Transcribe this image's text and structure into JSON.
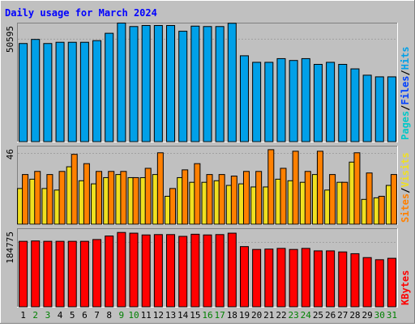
{
  "chart_data": {
    "type": "bar",
    "title": "Daily usage for March 2024",
    "x": {
      "labels": [
        "1",
        "2",
        "3",
        "4",
        "5",
        "6",
        "7",
        "8",
        "9",
        "10",
        "11",
        "12",
        "13",
        "14",
        "15",
        "16",
        "17",
        "18",
        "19",
        "20",
        "21",
        "22",
        "23",
        "24",
        "25",
        "26",
        "27",
        "28",
        "29",
        "30",
        "31"
      ],
      "weekend_days": [
        "2",
        "3",
        "9",
        "10",
        "16",
        "17",
        "23",
        "24",
        "30",
        "31"
      ]
    },
    "panels": [
      {
        "name": "hits-files-pages",
        "scale_label": "50595",
        "ymax": 57000,
        "legend": [
          "Pages",
          "/",
          "Files",
          "/",
          "Hits"
        ],
        "series": [
          {
            "name": "Hits",
            "color": "#00a0e8",
            "values": [
              48000,
              50000,
              48000,
              48600,
              48600,
              48600,
              49400,
              53000,
              58000,
              56300,
              56800,
              56800,
              56800,
              54000,
              56500,
              56300,
              56300,
              57900,
              42000,
              38800,
              38800,
              40600,
              39700,
              40600,
              37800,
              38800,
              37800,
              35600,
              32500,
              31700,
              31700
            ]
          }
        ]
      },
      {
        "name": "visits-sites",
        "scale_label": "46",
        "ymax": 49,
        "legend": [
          "Sites",
          "/",
          "Visits"
        ],
        "series": [
          {
            "name": "Visits",
            "color": "#f0e020",
            "values": [
              23,
              29,
              23,
              22,
              37,
              28,
              26,
              30,
              32,
              30,
              30,
              32,
              18,
              30,
              27,
              27,
              28,
              25,
              26,
              24,
              24,
              29,
              28,
              27,
              32,
              22,
              27,
              40,
              16,
              17,
              25
            ]
          },
          {
            "name": "Sites",
            "color": "#ff8000",
            "values": [
              32,
              34,
              32,
              34,
              45,
              39,
              34,
              34,
              34,
              30,
              36,
              46,
              23,
              35,
              39,
              32,
              32,
              31,
              34,
              34,
              48,
              36,
              47,
              34,
              47,
              32,
              27,
              46,
              33,
              18,
              32
            ]
          }
        ]
      },
      {
        "name": "kbytes",
        "scale_label": "184775",
        "ymax": 215000,
        "legend": [
          "KBytes"
        ],
        "series": [
          {
            "name": "KBytes",
            "color": "#ff0000",
            "values": [
              185000,
              186000,
              185000,
              185000,
              185000,
              185000,
              190000,
              200000,
              210000,
              208000,
              203000,
              204000,
              204000,
              199000,
              205000,
              203000,
              204000,
              208000,
              170000,
              162000,
              163000,
              165000,
              162000,
              165000,
              158000,
              158000,
              155000,
              150000,
              139000,
              133000,
              137000
            ]
          }
        ]
      }
    ],
    "colors": {
      "background": "#c0c0c0",
      "plot_background": "#c0c0c0",
      "border_dark": "#808080",
      "border_light": "#ffffff",
      "title": "#0000ff",
      "day_label": "#000000",
      "weekend_label": "#008000",
      "legend_separator": "#000000"
    }
  }
}
